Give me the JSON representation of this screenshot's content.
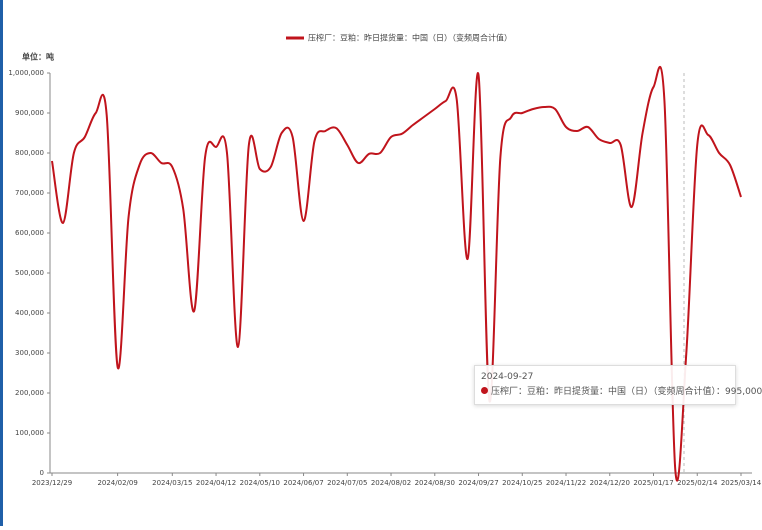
{
  "chart_data": {
    "type": "line",
    "y_unit": "单位：吨",
    "categories": [
      "2023/12/29",
      null,
      null,
      null,
      null,
      null,
      "2024/02/09",
      null,
      null,
      null,
      null,
      "2024/03/15",
      null,
      null,
      null,
      "2024/04/12",
      null,
      null,
      null,
      "2024/05/10",
      null,
      null,
      null,
      "2024/06/07",
      null,
      null,
      null,
      "2024/07/05",
      null,
      null,
      null,
      "2024/08/02",
      null,
      null,
      null,
      "2024/08/30",
      null,
      null,
      null,
      "2024/09/27",
      null,
      null,
      null,
      "2024/10/25",
      null,
      null,
      null,
      "2024/11/22",
      null,
      null,
      null,
      "2024/12/20",
      null,
      null,
      null,
      "2025/01/17",
      null,
      null,
      null,
      "2025/02/14",
      null,
      null,
      null,
      "2025/03/14"
    ],
    "series": [
      {
        "name": "压榨厂：豆粕：昨日提货量：中国（日）（变频周合计值）",
        "color": "#c0141c",
        "values": [
          780000,
          625000,
          800000,
          840000,
          900000,
          895000,
          265000,
          640000,
          770000,
          800000,
          775000,
          765000,
          660000,
          405000,
          790000,
          815000,
          800000,
          315000,
          820000,
          760000,
          765000,
          850000,
          840000,
          630000,
          830000,
          855000,
          862000,
          820000,
          775000,
          798000,
          800000,
          840000,
          848000,
          870000,
          890000,
          910000,
          930000,
          935000,
          535000,
          995000,
          180000,
          790000,
          890000,
          900000,
          910000,
          915000,
          910000,
          865000,
          855000,
          865000,
          835000,
          825000,
          820000,
          665000,
          850000,
          965000,
          930000,
          5000,
          300000,
          820000,
          845000,
          800000,
          770000,
          690000
        ]
      }
    ],
    "ylim": [
      0,
      1000000
    ],
    "yticks": [
      0,
      {
        "value": 100000,
        "label": "100,000"
      },
      {
        "value": 200000,
        "label": "200,000"
      },
      {
        "value": 300000,
        "label": "300,000"
      },
      {
        "value": 400000,
        "label": "400,000"
      },
      {
        "value": 500000,
        "label": "500,000"
      },
      {
        "value": 600000,
        "label": "600,000"
      },
      {
        "value": 700000,
        "label": "700,000"
      },
      {
        "value": 800000,
        "label": "800,000"
      },
      {
        "value": 900000,
        "label": "900,000"
      },
      {
        "value": 1000000,
        "label": "1,000,000"
      }
    ],
    "grid": false,
    "tooltip": {
      "title": "2024-09-27",
      "value_label": "995,000"
    }
  }
}
